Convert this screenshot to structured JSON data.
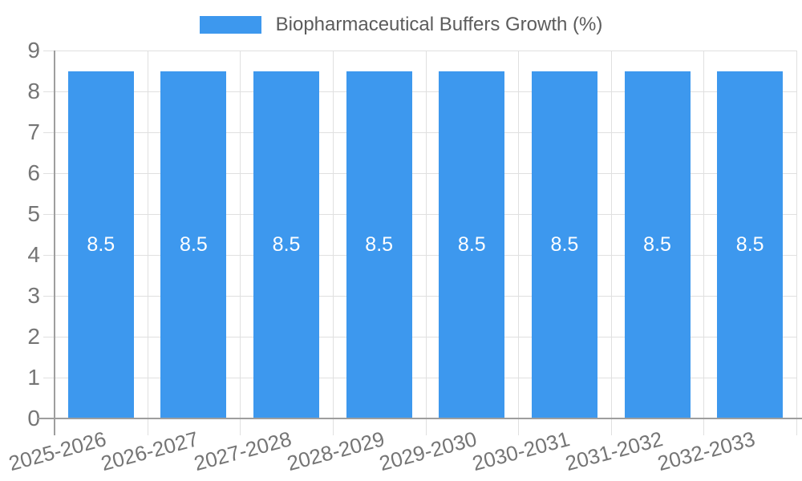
{
  "legend": {
    "label": "Biopharmaceutical Buffers Growth (%)"
  },
  "chart_data": {
    "type": "bar",
    "title": "Biopharmaceutical Buffers Growth (%)",
    "categories": [
      "2025-2026",
      "2026-2027",
      "2027-2028",
      "2028-2029",
      "2029-2030",
      "2030-2031",
      "2031-2032",
      "2032-2033"
    ],
    "series": [
      {
        "name": "Biopharmaceutical Buffers Growth (%)",
        "values": [
          8.5,
          8.5,
          8.5,
          8.5,
          8.5,
          8.5,
          8.5,
          8.5
        ]
      }
    ],
    "values": [
      8.5,
      8.5,
      8.5,
      8.5,
      8.5,
      8.5,
      8.5,
      8.5
    ],
    "value_labels": [
      "8.5",
      "8.5",
      "8.5",
      "8.5",
      "8.5",
      "8.5",
      "8.5",
      "8.5"
    ],
    "xlabel": "",
    "ylabel": "",
    "ylim": [
      0,
      9
    ],
    "y_ticks": [
      "0",
      "1",
      "2",
      "3",
      "4",
      "5",
      "6",
      "7",
      "8",
      "9"
    ],
    "grid": true,
    "legend_position": "top-center",
    "colors": {
      "bar": "#3d98ee",
      "value_label": "#ffffff",
      "axis_label": "#757575",
      "grid_line": "#e0e0e0",
      "axis_line": "#9e9e9e",
      "legend_text": "#5c5c5c",
      "background": "#ffffff"
    }
  }
}
